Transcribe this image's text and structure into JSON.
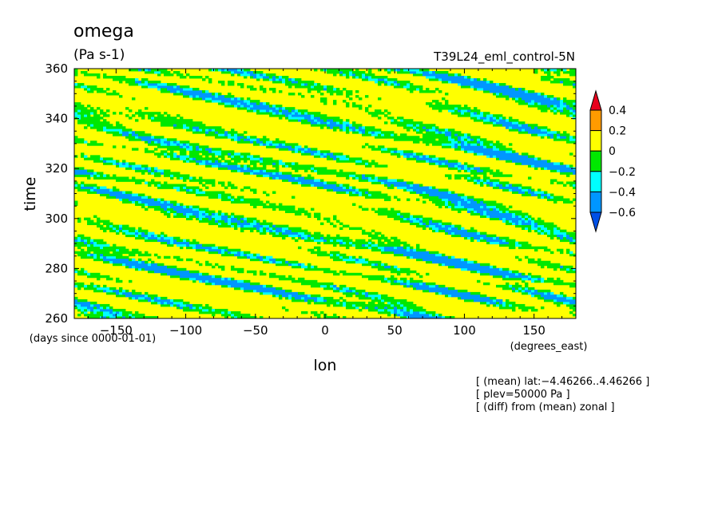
{
  "chart_data": {
    "type": "heatmap",
    "title": "omega",
    "units": "(Pa s-1)",
    "dataset": "T39L24_eml_control-5N",
    "xlabel": "lon",
    "xunits": "(degrees_east)",
    "ylabel": "time",
    "yunits": "(days since 0000-01-01)",
    "xlim": [
      -180,
      180
    ],
    "ylim": [
      260,
      360
    ],
    "xticks": [
      -150,
      -100,
      -50,
      0,
      50,
      100,
      150
    ],
    "xtick_labels": [
      "−150",
      "−100",
      "−50",
      "0",
      "50",
      "100",
      "150"
    ],
    "yticks": [
      260,
      280,
      300,
      320,
      340,
      360
    ],
    "ytick_labels": [
      "260",
      "280",
      "300",
      "320",
      "340",
      "360"
    ],
    "colorbar": {
      "levels": [
        0.4,
        0.2,
        0,
        -0.2,
        -0.4,
        -0.6
      ],
      "labels": [
        "0.4",
        "0.2",
        "0",
        "−0.2",
        "−0.4",
        "−0.6"
      ],
      "colors": [
        "#e8001c",
        "#ff9b00",
        "#ffff00",
        "#00e800",
        "#00ffff",
        "#0096ff",
        "#0050e6"
      ]
    },
    "background_color": "#ffff00",
    "field_description": "Hovmoller of omega anomaly: westward-propagating diagonal bands of negative values (green/cyan) on a near-zero (yellow) background"
  },
  "notes": [
    "[ (mean) lat:−4.46266..4.46266 ]",
    "[ plev=50000 Pa ]",
    "[ (diff) from (mean) zonal ]"
  ]
}
